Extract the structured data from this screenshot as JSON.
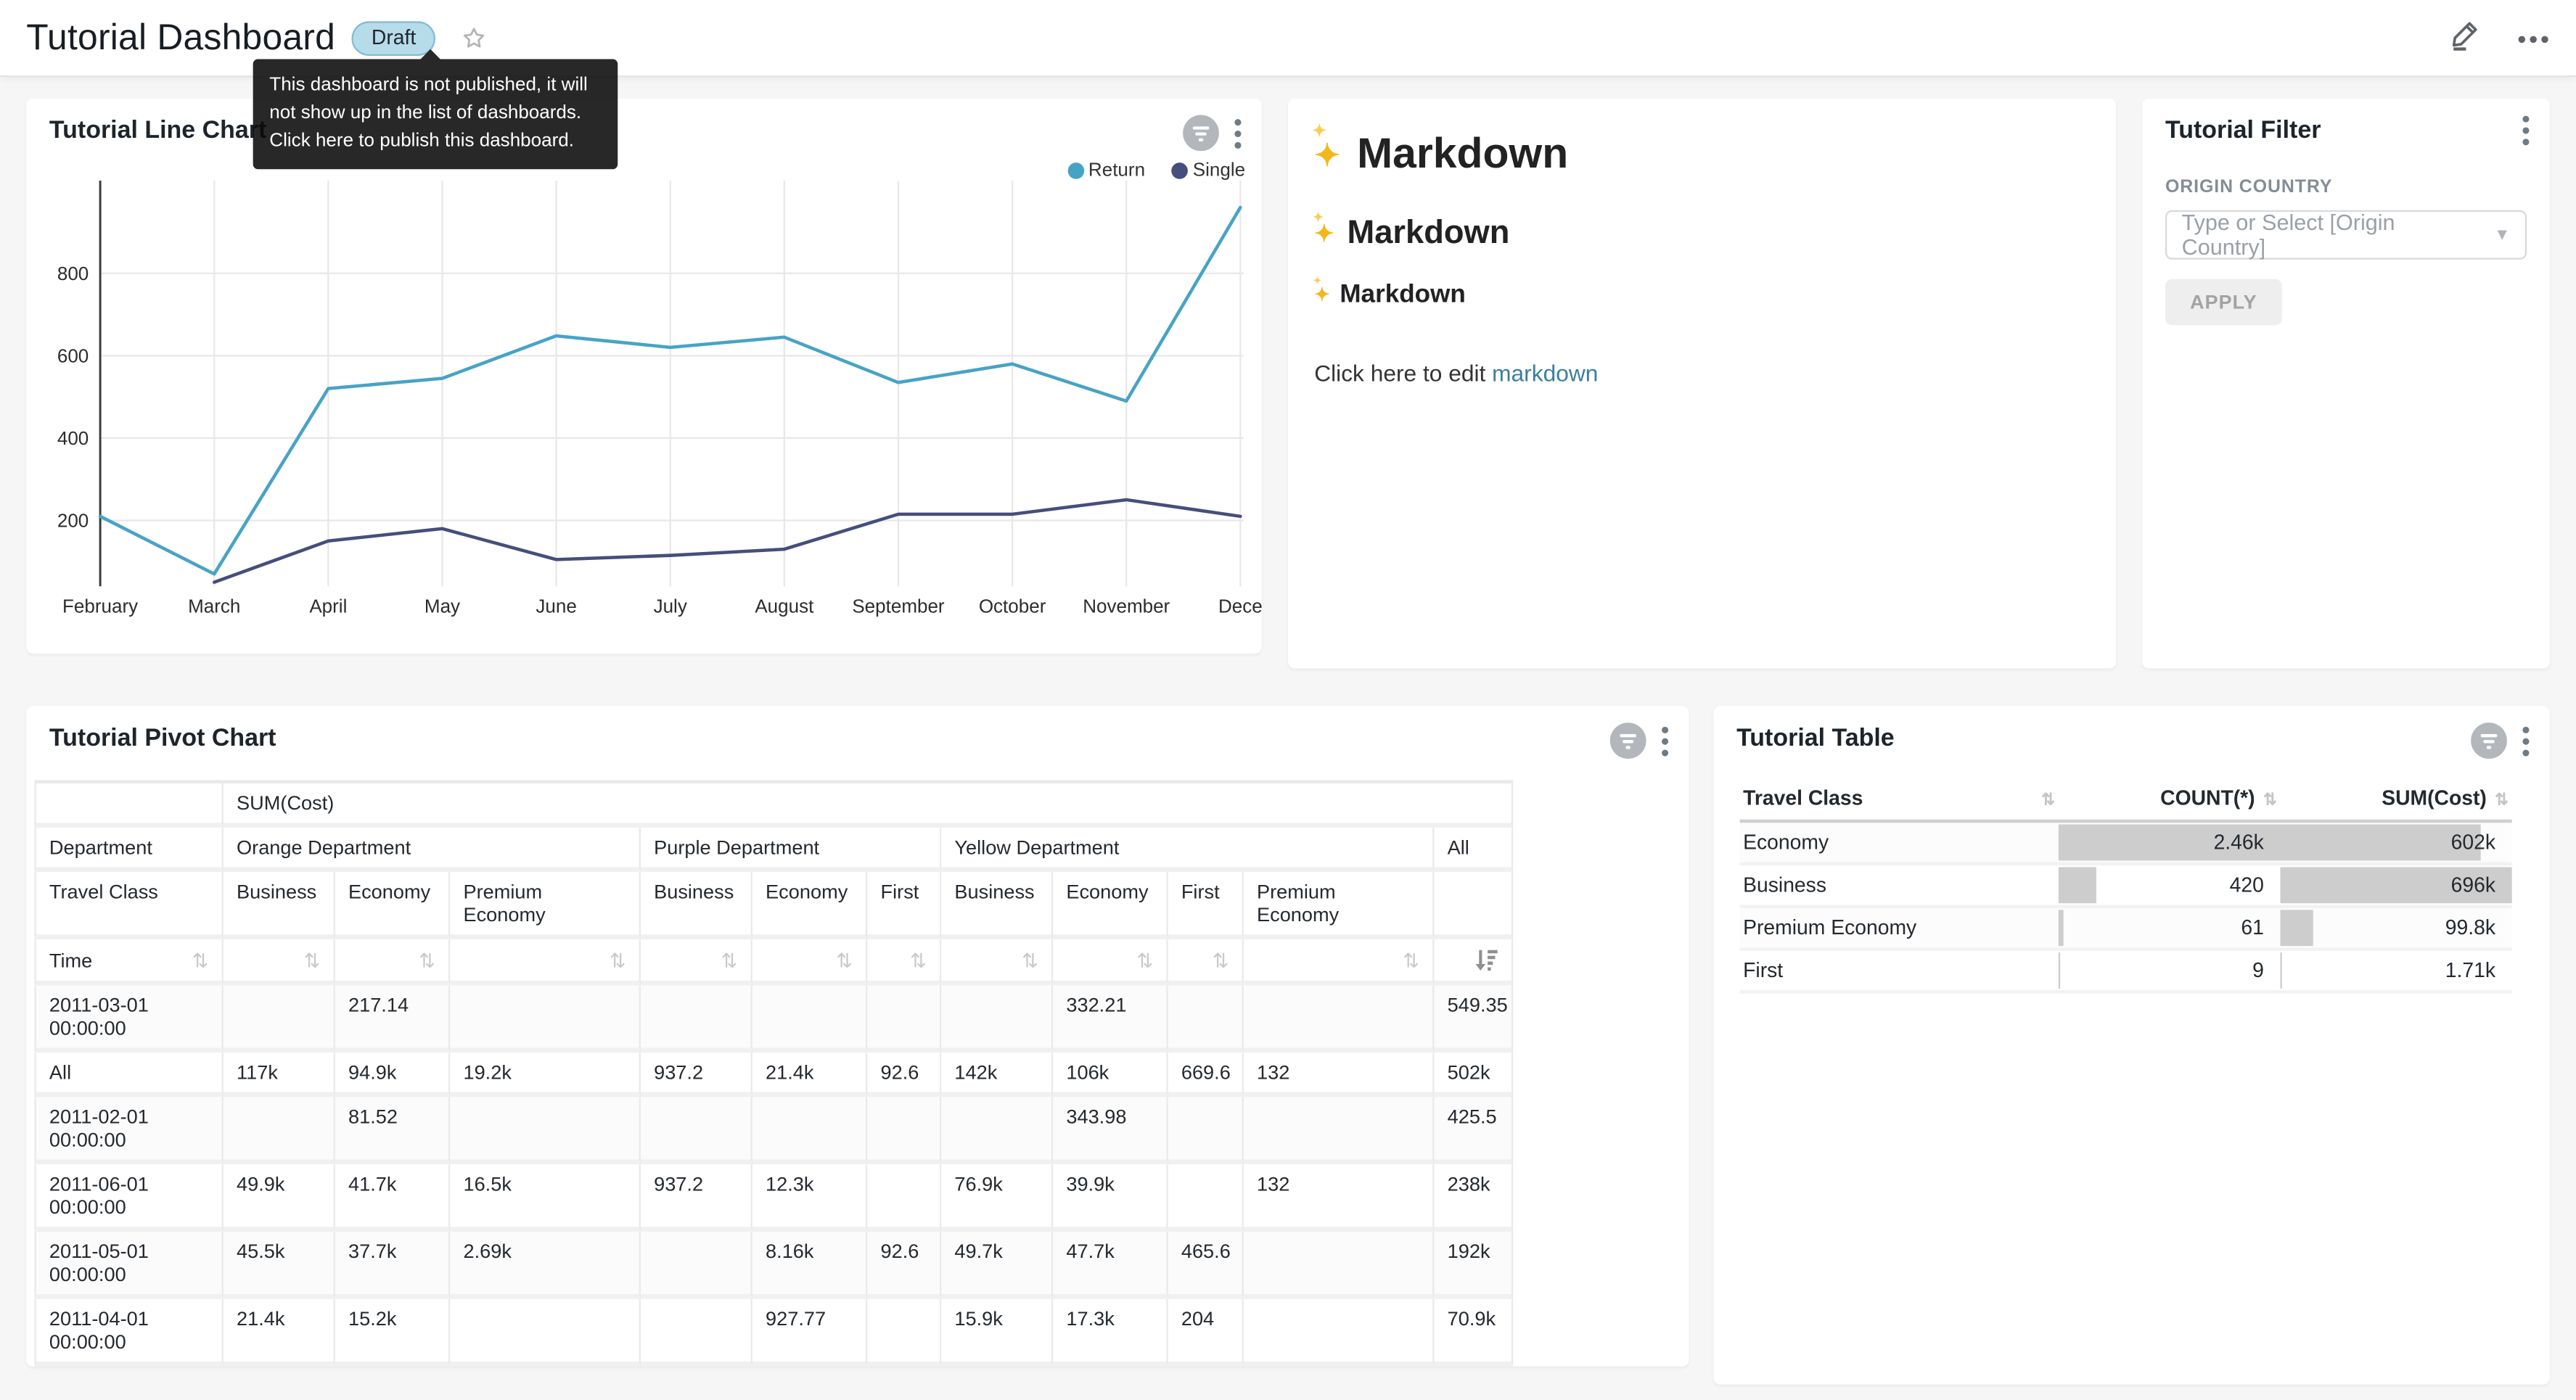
{
  "header": {
    "title": "Tutorial Dashboard",
    "draft_label": "Draft",
    "tooltip_lines": [
      "This dashboard is not published, it will",
      "not show up in the list of dashboards.",
      "Click here to publish this dashboard."
    ]
  },
  "line_chart": {
    "title": "Tutorial Line Chart"
  },
  "chart_data": {
    "type": "line",
    "title": "Tutorial Line Chart",
    "x": [
      "February",
      "March",
      "April",
      "May",
      "June",
      "July",
      "August",
      "September",
      "October",
      "November",
      "December"
    ],
    "x_tick_labels": [
      "February",
      "March",
      "April",
      "May",
      "June",
      "July",
      "August",
      "September",
      "October",
      "November",
      "Dece"
    ],
    "series": [
      {
        "name": "Return",
        "color": "#47a3c6",
        "values": [
          210,
          70,
          520,
          545,
          648,
          620,
          645,
          535,
          580,
          490,
          960
        ]
      },
      {
        "name": "Single",
        "color": "#454e7c",
        "values": [
          null,
          50,
          150,
          180,
          105,
          115,
          130,
          215,
          215,
          250,
          210
        ]
      }
    ],
    "yticks": [
      200,
      400,
      600,
      800
    ],
    "ylim": [
      40,
      1005
    ],
    "grid": true,
    "legend_position": "top-right"
  },
  "markdown": {
    "h1": "Markdown",
    "h2": "Markdown",
    "h3": "Markdown",
    "sparkle": "✨",
    "paragraph_prefix": "Click here to edit ",
    "link_text": "markdown"
  },
  "filter": {
    "title": "Tutorial Filter",
    "field_label": "ORIGIN COUNTRY",
    "placeholder": "Type or Select [Origin Country]",
    "apply_label": "APPLY"
  },
  "pivot": {
    "title": "Tutorial Pivot Chart",
    "metric_label": "SUM(Cost)",
    "col_dim_label": "Department",
    "col_sub_label": "Travel Class",
    "row_dim_label": "Time",
    "groups": [
      {
        "name": "Orange Department",
        "cols": [
          "Business",
          "Economy",
          "Premium Economy"
        ]
      },
      {
        "name": "Purple Department",
        "cols": [
          "Business",
          "Economy",
          "First"
        ]
      },
      {
        "name": "Yellow Department",
        "cols": [
          "Business",
          "Economy",
          "First",
          "Premium Economy"
        ]
      },
      {
        "name": "All",
        "cols": [
          ""
        ]
      }
    ],
    "rows": [
      {
        "label": "2011-03-01 00:00:00",
        "values": [
          "",
          "217.14",
          "",
          "",
          "",
          "",
          "",
          "332.21",
          "",
          "",
          "549.35"
        ]
      },
      {
        "label": "All",
        "values": [
          "117k",
          "94.9k",
          "19.2k",
          "937.2",
          "21.4k",
          "92.6",
          "142k",
          "106k",
          "669.6",
          "132",
          "502k"
        ]
      },
      {
        "label": "2011-02-01 00:00:00",
        "values": [
          "",
          "81.52",
          "",
          "",
          "",
          "",
          "",
          "343.98",
          "",
          "",
          "425.5"
        ]
      },
      {
        "label": "2011-06-01 00:00:00",
        "values": [
          "49.9k",
          "41.7k",
          "16.5k",
          "937.2",
          "12.3k",
          "",
          "76.9k",
          "39.9k",
          "",
          "132",
          "238k"
        ]
      },
      {
        "label": "2011-05-01 00:00:00",
        "values": [
          "45.5k",
          "37.7k",
          "2.69k",
          "",
          "8.16k",
          "92.6",
          "49.7k",
          "47.7k",
          "465.6",
          "",
          "192k"
        ]
      },
      {
        "label": "2011-04-01 00:00:00",
        "values": [
          "21.4k",
          "15.2k",
          "",
          "",
          "927.77",
          "",
          "15.9k",
          "17.3k",
          "204",
          "",
          "70.9k"
        ]
      }
    ]
  },
  "table": {
    "title": "Tutorial Table",
    "columns": [
      "Travel Class",
      "COUNT(*)",
      "SUM(Cost)"
    ],
    "rows": [
      {
        "travel_class": "Economy",
        "count": "2.46k",
        "sum": "602k",
        "count_bar_pct": 100,
        "sum_bar_pct": 86.5
      },
      {
        "travel_class": "Business",
        "count": "420",
        "sum": "696k",
        "count_bar_pct": 17.1,
        "sum_bar_pct": 100
      },
      {
        "travel_class": "Premium Economy",
        "count": "61",
        "sum": "99.8k",
        "count_bar_pct": 2.5,
        "sum_bar_pct": 14.3
      },
      {
        "travel_class": "First",
        "count": "9",
        "sum": "1.71k",
        "count_bar_pct": 0.4,
        "sum_bar_pct": 0.25
      }
    ],
    "bar_color": "#cdcdcd"
  },
  "colors": {
    "page_bg": "#f6f6f6",
    "card_bg": "#ffffff",
    "link": "#3d7e9e",
    "draft_bg": "#b6dcea",
    "draft_border": "#84bcd4",
    "tooltip_bg": "#0a0a0a",
    "grid_line": "#e8e8e8",
    "icon_gray": "#5f6368"
  }
}
